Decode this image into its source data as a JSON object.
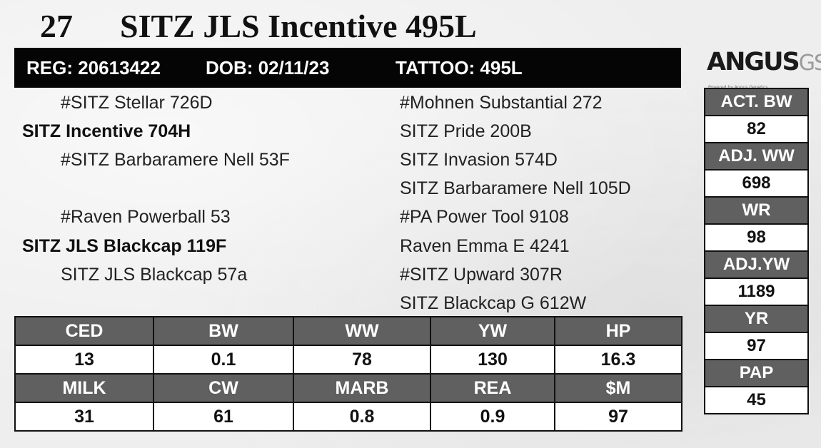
{
  "header": {
    "lot_number": "27",
    "animal_name": "SITZ JLS Incentive 495L"
  },
  "reg_bar": {
    "reg": "REG: 20613422",
    "dob": "DOB: 02/11/23",
    "tattoo": "TATTOO: 495L"
  },
  "logo": {
    "text_main": "ANGUS",
    "text_suffix": "GS",
    "tagline": "Powered by Angus Genetics"
  },
  "pedigree": {
    "sire_sire": "#SITZ Stellar 726D",
    "sire": "SITZ Incentive 704H",
    "sire_dam": "#SITZ Barbaramere Nell 53F",
    "dam_sire": "#Raven Powerball 53",
    "dam": "SITZ JLS Blackcap 119F",
    "dam_dam": "SITZ JLS Blackcap 57a",
    "right_col": [
      "#Mohnen Substantial 272",
      "SITZ Pride 200B",
      "SITZ Invasion 574D",
      "SITZ Barbaramere Nell 105D",
      "#PA Power Tool 9108",
      "Raven Emma E 4241",
      "#SITZ Upward 307R",
      "SITZ Blackcap G 612W"
    ]
  },
  "epds": {
    "row1": [
      {
        "label": "CED",
        "value": "13"
      },
      {
        "label": "BW",
        "value": "0.1"
      },
      {
        "label": "WW",
        "value": "78"
      },
      {
        "label": "YW",
        "value": "130"
      },
      {
        "label": "HP",
        "value": "16.3"
      }
    ],
    "row2": [
      {
        "label": "MILK",
        "value": "31"
      },
      {
        "label": "CW",
        "value": "61"
      },
      {
        "label": "MARB",
        "value": "0.8"
      },
      {
        "label": "REA",
        "value": "0.9"
      },
      {
        "label": "$M",
        "value": "97"
      }
    ]
  },
  "performance": [
    {
      "label": "ACT. BW",
      "value": "82"
    },
    {
      "label": "ADJ. WW",
      "value": "698"
    },
    {
      "label": "WR",
      "value": "98"
    },
    {
      "label": "ADJ.YW",
      "value": "1189"
    },
    {
      "label": "YR",
      "value": "97"
    },
    {
      "label": "PAP",
      "value": "45"
    }
  ]
}
